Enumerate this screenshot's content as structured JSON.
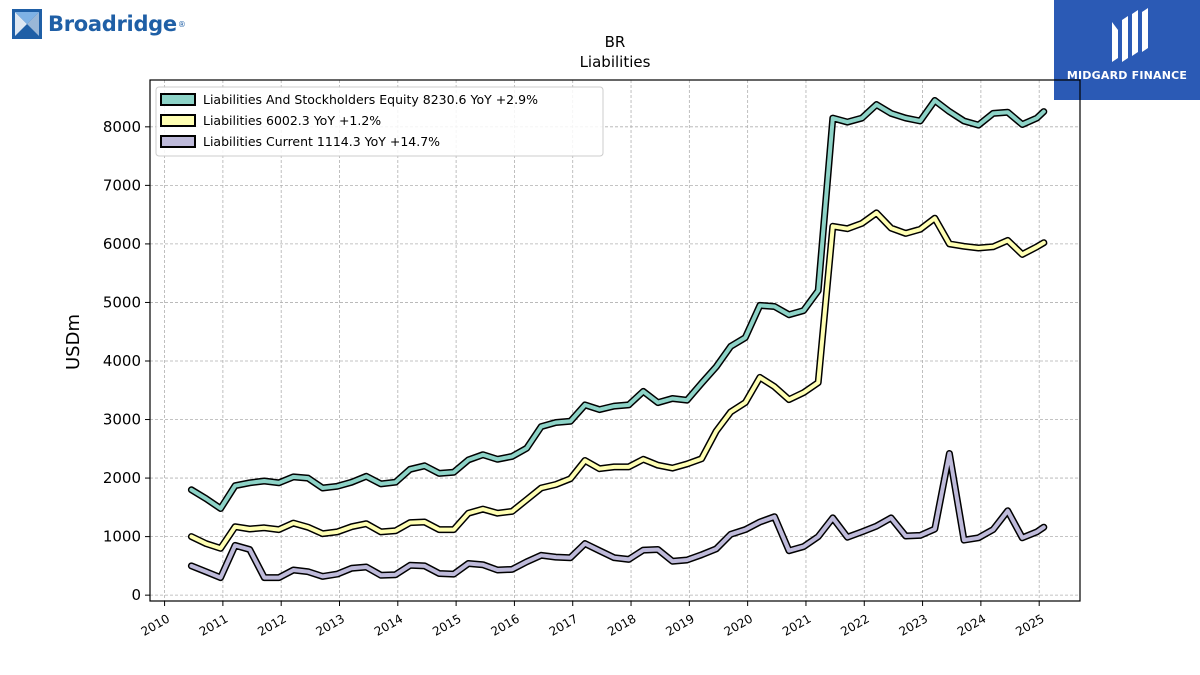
{
  "brand": {
    "left_logo_text": "Broadridge",
    "left_logo_mark": "®",
    "right_logo_text": "MIDGARD FINANCE",
    "right_logo_bg": "#2b5ab5",
    "left_logo_color": "#1f5fa6"
  },
  "chart_data": {
    "type": "line",
    "title": "BR",
    "subtitle": "Liabilities",
    "ylabel": "USDm",
    "xlabel": "",
    "ylim": [
      -100,
      8800
    ],
    "xlim": [
      2009.75,
      2025.7
    ],
    "yticks": [
      0,
      1000,
      2000,
      3000,
      4000,
      5000,
      6000,
      7000,
      8000
    ],
    "xticks": [
      2010,
      2011,
      2012,
      2013,
      2014,
      2015,
      2016,
      2017,
      2018,
      2019,
      2020,
      2021,
      2022,
      2023,
      2024,
      2025
    ],
    "grid": true,
    "legend_position": "top-left",
    "series": [
      {
        "name": "Liabilities And Stockholders Equity  8230.6 YoY +2.9%",
        "color": "#8dd3c7",
        "x": [
          2010.46,
          2010.71,
          2010.96,
          2011.21,
          2011.46,
          2011.71,
          2011.96,
          2012.21,
          2012.46,
          2012.71,
          2012.96,
          2013.21,
          2013.46,
          2013.71,
          2013.96,
          2014.21,
          2014.46,
          2014.71,
          2014.96,
          2015.21,
          2015.46,
          2015.71,
          2015.96,
          2016.21,
          2016.46,
          2016.71,
          2016.96,
          2017.21,
          2017.46,
          2017.71,
          2017.96,
          2018.21,
          2018.46,
          2018.71,
          2018.96,
          2019.21,
          2019.46,
          2019.71,
          2019.96,
          2020.21,
          2020.46,
          2020.71,
          2020.96,
          2021.21,
          2021.46,
          2021.71,
          2021.96,
          2022.21,
          2022.46,
          2022.71,
          2022.96,
          2023.21,
          2023.46,
          2023.71,
          2023.96,
          2024.21,
          2024.46,
          2024.71,
          2024.96,
          2025.08
        ],
        "y": [
          1800,
          1650,
          1480,
          1870,
          1920,
          1950,
          1920,
          2020,
          2000,
          1830,
          1860,
          1930,
          2030,
          1900,
          1930,
          2150,
          2210,
          2080,
          2100,
          2310,
          2400,
          2320,
          2370,
          2510,
          2880,
          2950,
          2970,
          3250,
          3170,
          3230,
          3250,
          3480,
          3290,
          3360,
          3330,
          3620,
          3900,
          4250,
          4400,
          4950,
          4930,
          4790,
          4860,
          5200,
          8150,
          8080,
          8150,
          8380,
          8230,
          8150,
          8100,
          8450,
          8260,
          8100,
          8030,
          8230,
          8250,
          8040,
          8150,
          8260
        ]
      },
      {
        "name": "Liabilities  6002.3 YoY +1.2%",
        "color": "#ffffb3",
        "x": [
          2010.46,
          2010.71,
          2010.96,
          2011.21,
          2011.46,
          2011.71,
          2011.96,
          2012.21,
          2012.46,
          2012.71,
          2012.96,
          2013.21,
          2013.46,
          2013.71,
          2013.96,
          2014.21,
          2014.46,
          2014.71,
          2014.96,
          2015.21,
          2015.46,
          2015.71,
          2015.96,
          2016.21,
          2016.46,
          2016.71,
          2016.96,
          2017.21,
          2017.46,
          2017.71,
          2017.96,
          2018.21,
          2018.46,
          2018.71,
          2018.96,
          2019.21,
          2019.46,
          2019.71,
          2019.96,
          2020.21,
          2020.46,
          2020.71,
          2020.96,
          2021.21,
          2021.46,
          2021.71,
          2021.96,
          2022.21,
          2022.46,
          2022.71,
          2022.96,
          2023.21,
          2023.46,
          2023.71,
          2023.96,
          2024.21,
          2024.46,
          2024.71,
          2024.96,
          2025.08
        ],
        "y": [
          1000,
          880,
          800,
          1170,
          1130,
          1150,
          1120,
          1230,
          1160,
          1050,
          1080,
          1170,
          1220,
          1080,
          1100,
          1240,
          1250,
          1120,
          1120,
          1400,
          1470,
          1400,
          1430,
          1630,
          1830,
          1890,
          1990,
          2300,
          2160,
          2190,
          2190,
          2320,
          2220,
          2170,
          2240,
          2330,
          2800,
          3130,
          3290,
          3720,
          3560,
          3340,
          3460,
          3630,
          6300,
          6260,
          6350,
          6530,
          6270,
          6180,
          6250,
          6440,
          6000,
          5960,
          5930,
          5950,
          6060,
          5820,
          5950,
          6020
        ]
      },
      {
        "name": "Liabilities Current  1114.3 YoY +14.7%",
        "color": "#bebada",
        "x": [
          2010.46,
          2010.71,
          2010.96,
          2011.21,
          2011.46,
          2011.71,
          2011.96,
          2012.21,
          2012.46,
          2012.71,
          2012.96,
          2013.21,
          2013.46,
          2013.71,
          2013.96,
          2014.21,
          2014.46,
          2014.71,
          2014.96,
          2015.21,
          2015.46,
          2015.71,
          2015.96,
          2016.21,
          2016.46,
          2016.71,
          2016.96,
          2017.21,
          2017.46,
          2017.71,
          2017.96,
          2018.21,
          2018.46,
          2018.71,
          2018.96,
          2019.21,
          2019.46,
          2019.71,
          2019.96,
          2020.21,
          2020.46,
          2020.71,
          2020.96,
          2021.21,
          2021.46,
          2021.71,
          2021.96,
          2022.21,
          2022.46,
          2022.71,
          2022.96,
          2023.21,
          2023.46,
          2023.71,
          2023.96,
          2024.21,
          2024.46,
          2024.71,
          2024.96,
          2025.08
        ],
        "y": [
          500,
          400,
          300,
          850,
          780,
          300,
          300,
          430,
          400,
          320,
          360,
          460,
          480,
          340,
          350,
          510,
          500,
          370,
          360,
          540,
          520,
          430,
          440,
          570,
          680,
          650,
          640,
          880,
          760,
          640,
          610,
          770,
          780,
          580,
          600,
          690,
          790,
          1040,
          1120,
          1250,
          1340,
          760,
          830,
          1000,
          1320,
          990,
          1080,
          1180,
          1320,
          1010,
          1020,
          1130,
          2420,
          940,
          980,
          1120,
          1440,
          980,
          1080,
          1160
        ]
      }
    ]
  }
}
